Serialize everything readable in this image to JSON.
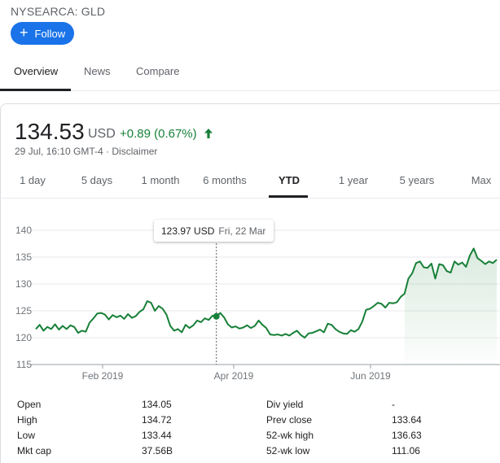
{
  "header": {
    "exchange": "NYSEARCA: GLD",
    "follow_label": "Follow"
  },
  "tabs": [
    {
      "label": "Overview",
      "active": true
    },
    {
      "label": "News",
      "active": false
    },
    {
      "label": "Compare",
      "active": false
    }
  ],
  "quote": {
    "price": "134.53",
    "currency": "USD",
    "change": "+0.89 (0.67%)",
    "timestamp": "29 Jul, 16:10 GMT-4 · Disclaimer",
    "direction": "up",
    "up_color": "#188038"
  },
  "ranges": [
    {
      "label": "1 day",
      "active": false
    },
    {
      "label": "5 days",
      "active": false
    },
    {
      "label": "1 month",
      "active": false
    },
    {
      "label": "6 months",
      "active": false
    },
    {
      "label": "YTD",
      "active": true
    },
    {
      "label": "1 year",
      "active": false
    },
    {
      "label": "5 years",
      "active": false
    },
    {
      "label": "Max",
      "active": false
    }
  ],
  "tooltip": {
    "value": "123.97 USD",
    "date": "Fri, 22 Mar"
  },
  "chart_data": {
    "type": "line",
    "yticks": [
      115,
      120,
      125,
      130,
      135,
      140
    ],
    "ylim": [
      115,
      140
    ],
    "xticks": [
      "Feb 2019",
      "Apr 2019",
      "Jun 2019"
    ],
    "line_color": "#188038",
    "grid": true,
    "fill": "area-gradient-after-current",
    "series": [
      {
        "values": [
          121.6,
          122.4,
          121.3,
          122.0,
          121.6,
          122.5,
          121.5,
          122.2,
          121.6,
          122.3,
          122.0,
          120.9,
          121.3,
          121.1,
          122.8,
          123.6,
          124.5,
          124.6,
          124.3,
          123.4,
          124.2,
          123.8,
          124.1,
          123.5,
          124.4,
          123.7,
          124.0,
          124.8,
          125.3,
          126.8,
          126.5,
          125.0,
          125.9,
          125.4,
          124.3,
          122.2,
          121.3,
          121.6,
          121.0,
          122.4,
          121.8,
          122.3,
          123.2,
          122.9,
          123.6,
          123.3,
          124.1,
          123.97,
          124.6,
          123.8,
          122.5,
          121.9,
          122.1,
          121.7,
          121.9,
          122.3,
          121.8,
          122.2,
          123.2,
          122.4,
          121.8,
          120.6,
          120.5,
          120.6,
          120.4,
          120.7,
          120.4,
          120.9,
          121.3,
          120.5,
          120.0,
          120.8,
          120.9,
          121.2,
          121.5,
          121.0,
          122.6,
          122.4,
          121.6,
          121.1,
          120.8,
          120.7,
          121.4,
          121.1,
          121.6,
          123.0,
          125.2,
          125.4,
          125.9,
          126.5,
          126.3,
          125.6,
          126.5,
          126.4,
          126.6,
          127.6,
          128.2,
          131.0,
          132.0,
          133.9,
          134.2,
          133.1,
          133.0,
          133.8,
          131.0,
          133.7,
          133.5,
          132.4,
          132.1,
          134.2,
          133.6,
          134.0,
          133.2,
          135.3,
          136.6,
          134.8,
          134.3,
          133.7,
          134.2,
          133.9,
          134.53
        ]
      }
    ],
    "highlight_index": 47
  },
  "stats": {
    "left": [
      {
        "label": "Open",
        "value": "134.05"
      },
      {
        "label": "High",
        "value": "134.72"
      },
      {
        "label": "Low",
        "value": "133.44"
      },
      {
        "label": "Mkt cap",
        "value": "37.56B"
      }
    ],
    "right": [
      {
        "label": "Div yield",
        "value": "-"
      },
      {
        "label": "Prev close",
        "value": "133.64"
      },
      {
        "label": "52-wk high",
        "value": "136.63"
      },
      {
        "label": "52-wk low",
        "value": "111.06"
      }
    ]
  }
}
